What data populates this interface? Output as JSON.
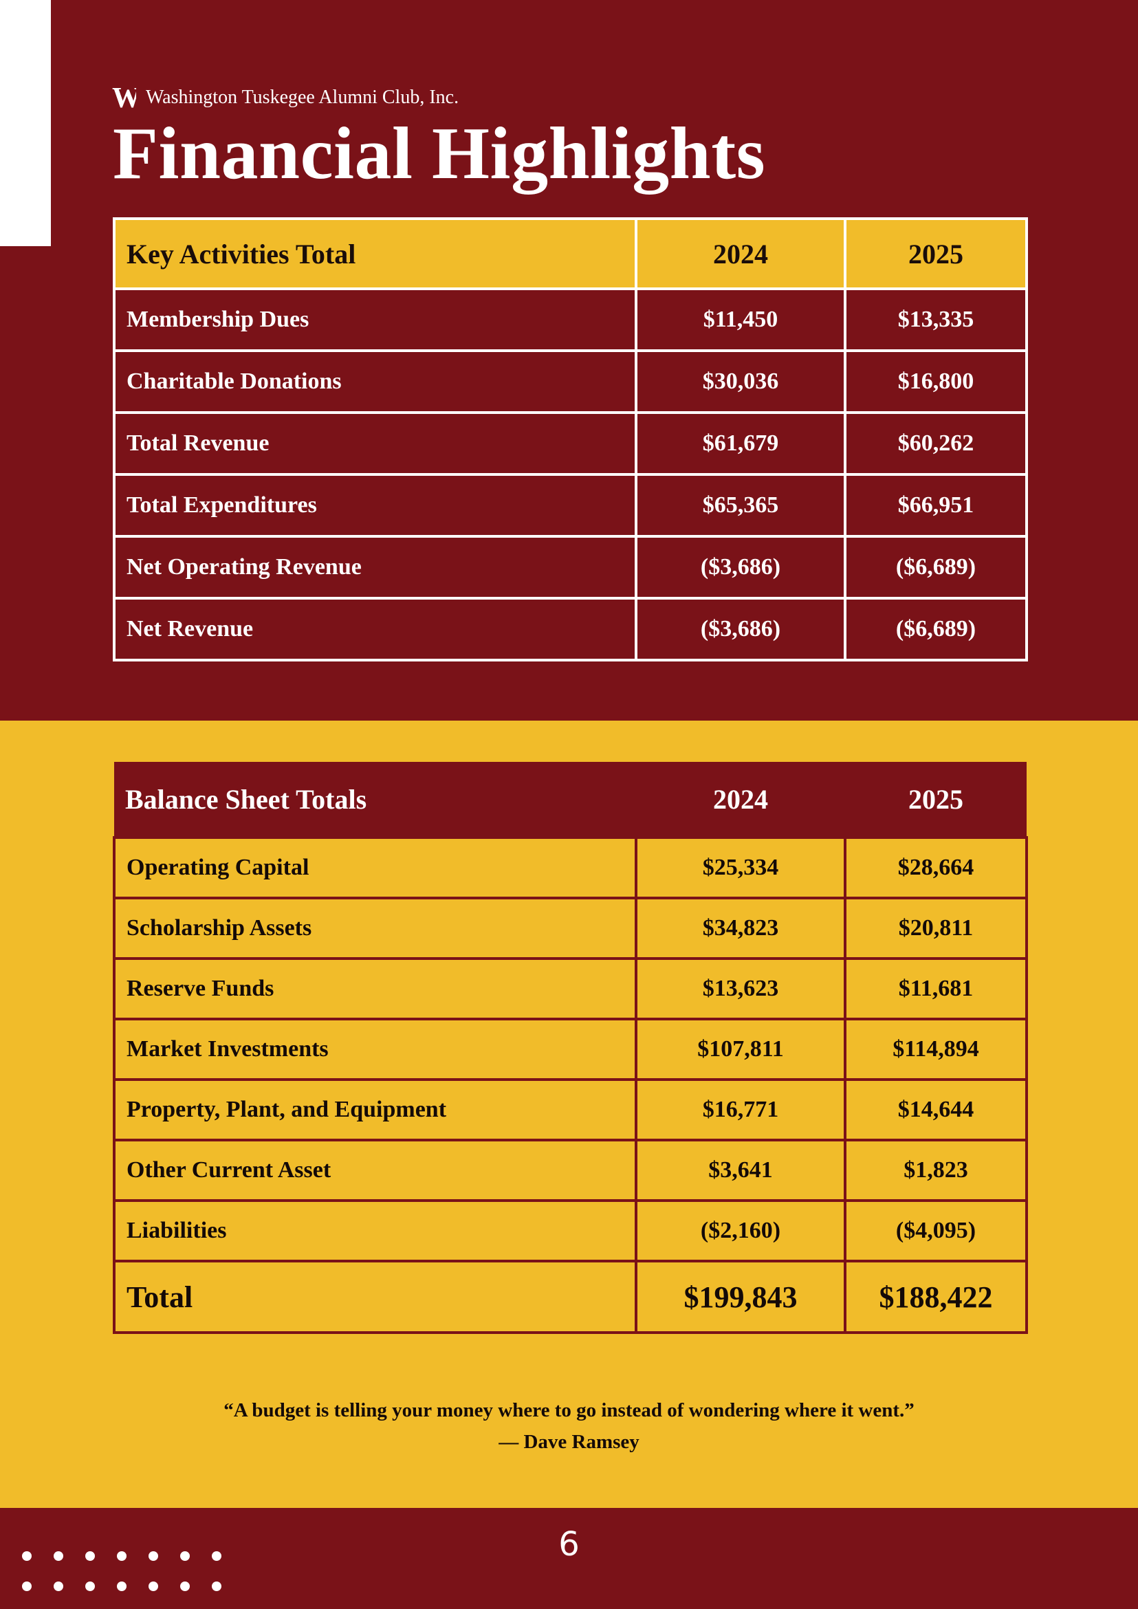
{
  "header": {
    "org_name": "Washington Tuskegee Alumni Club, Inc.",
    "logo_letter": "W",
    "title": "Financial Highlights"
  },
  "key_activities": {
    "columns": [
      "Key Activities Total",
      "2024",
      "2025"
    ],
    "rows": [
      [
        "Membership Dues",
        "$11,450",
        "$13,335"
      ],
      [
        "Charitable Donations",
        "$30,036",
        "$16,800"
      ],
      [
        "Total Revenue",
        "$61,679",
        "$60,262"
      ],
      [
        "Total Expenditures",
        "$65,365",
        "$66,951"
      ],
      [
        "Net Operating Revenue",
        "($3,686)",
        "($6,689)"
      ],
      [
        "Net Revenue",
        "($3,686)",
        "($6,689)"
      ]
    ]
  },
  "balance_sheet": {
    "columns": [
      "Balance Sheet Totals",
      "2024",
      "2025"
    ],
    "rows": [
      [
        "Operating Capital",
        "$25,334",
        "$28,664"
      ],
      [
        "Scholarship Assets",
        "$34,823",
        "$20,811"
      ],
      [
        "Reserve Funds",
        "$13,623",
        "$11,681"
      ],
      [
        "Market Investments",
        "$107,811",
        "$114,894"
      ],
      [
        "Property, Plant, and Equipment",
        "$16,771",
        "$14,644"
      ],
      [
        "Other Current Asset",
        "$3,641",
        "$1,823"
      ],
      [
        "Liabilities",
        "($2,160)",
        "($4,095)"
      ]
    ],
    "total": [
      "Total",
      "$199,843",
      "$188,422"
    ]
  },
  "quote": {
    "text": "“A budget is telling your money where to go instead of wondering where it went.”",
    "author": "— Dave Ramsey"
  },
  "footer": {
    "page_number": "6"
  },
  "colors": {
    "maroon": "#7a1218",
    "gold": "#f1bc2a",
    "white": "#ffffff"
  }
}
